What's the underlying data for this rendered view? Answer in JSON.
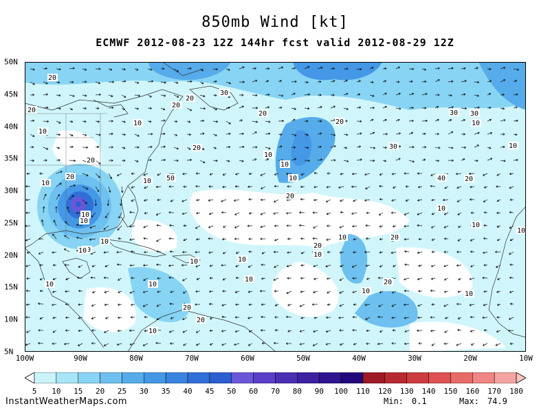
{
  "title": "850mb Wind [kt]",
  "subtitle": "ECMWF 2012-08-23 12Z 144hr fcst valid 2012-08-29 12Z",
  "map": {
    "lon_labels": [
      "100W",
      "90W",
      "80W",
      "70W",
      "60W",
      "50W",
      "40W",
      "30W",
      "20W",
      "10W"
    ],
    "lat_labels": [
      "50N",
      "45N",
      "40N",
      "35N",
      "30N",
      "25N",
      "20N",
      "15N",
      "10N",
      "5N"
    ],
    "contour_labels": [
      "20",
      "30",
      "20",
      "20",
      "20",
      "10",
      "20",
      "10",
      "20",
      "30",
      "30",
      "10",
      "20",
      "10",
      "10",
      "10",
      "20",
      "20",
      "10",
      "20",
      "30",
      "10",
      "10",
      "50",
      "40",
      "20",
      "10",
      "10",
      "10",
      "10",
      "10",
      "10",
      "10",
      "10",
      "10",
      "10",
      "10",
      "10",
      "10",
      "20",
      "20",
      "10",
      "10",
      "20",
      "20",
      "20",
      "10",
      "10",
      "10",
      "10",
      "10",
      "10",
      "10",
      "20"
    ]
  },
  "colorbar": {
    "labels": [
      "5",
      "10",
      "15",
      "20",
      "25",
      "30",
      "35",
      "40",
      "45",
      "50",
      "60",
      "70",
      "80",
      "90",
      "100",
      "110",
      "120",
      "130",
      "140",
      "150",
      "160",
      "170",
      "180"
    ],
    "colors": [
      "#c8f4fa",
      "#a6e6f7",
      "#88d4f4",
      "#6dc0ef",
      "#56acea",
      "#4498e6",
      "#3984e0",
      "#316fd8",
      "#2c5fcf",
      "#6a57d8",
      "#5a40c8",
      "#4a2fb4",
      "#3d21a1",
      "#2f148e",
      "#21087c",
      "#9e1a25",
      "#b82a31",
      "#cd3c3e",
      "#de5251",
      "#e86b67",
      "#ef8683",
      "#f5a4a2",
      "#f9c3c3"
    ]
  },
  "credit": "InstantWeatherMaps.com",
  "stats": {
    "min_label": "Min:",
    "min_value": "0.1",
    "max_label": "Max:",
    "max_value": "74.9"
  }
}
